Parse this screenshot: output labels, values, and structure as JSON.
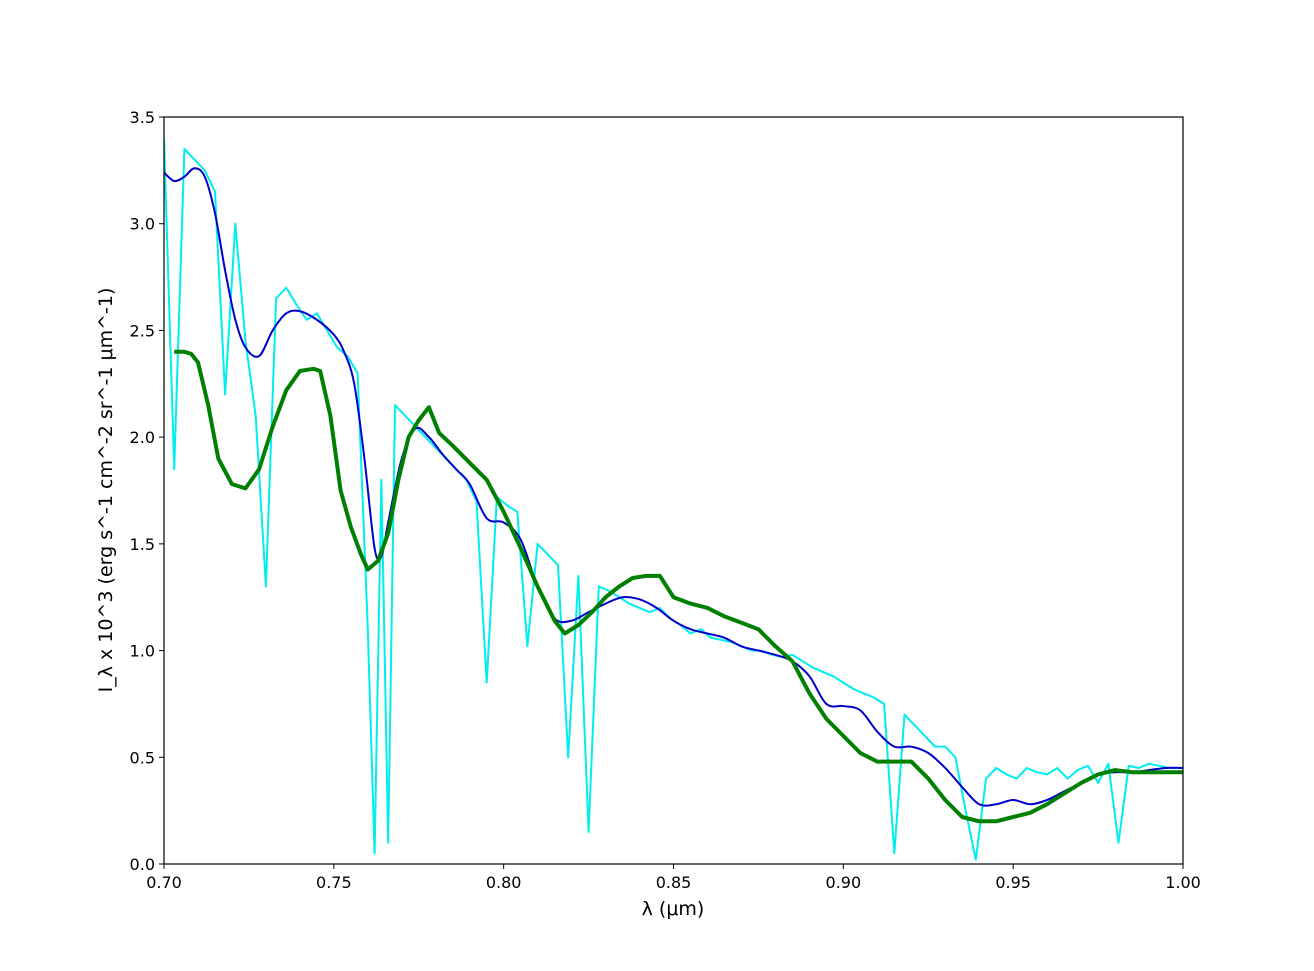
{
  "chart_data": {
    "type": "line",
    "title": "",
    "xlabel": "λ (μm)",
    "ylabel": "I_λ x 10^3 (erg s^-1 cm^-2 sr^-1 μm^-1)",
    "xlim": [
      0.7,
      1.0
    ],
    "ylim": [
      0.0,
      3.5
    ],
    "grid": false,
    "legend": "none",
    "x_ticks": [
      "0.70",
      "0.75",
      "0.80",
      "0.85",
      "0.90",
      "0.95",
      "1.00"
    ],
    "y_ticks": [
      "0.0",
      "0.5",
      "1.0",
      "1.5",
      "2.0",
      "2.5",
      "3.0",
      "3.5"
    ],
    "series": [
      {
        "color": "#00eeee",
        "style": "noisy",
        "x": [
          0.7,
          0.703,
          0.706,
          0.709,
          0.712,
          0.715,
          0.718,
          0.721,
          0.724,
          0.727,
          0.73,
          0.733,
          0.736,
          0.739,
          0.742,
          0.745,
          0.748,
          0.751,
          0.754,
          0.757,
          0.76,
          0.762,
          0.764,
          0.766,
          0.768,
          0.771,
          0.774,
          0.777,
          0.78,
          0.783,
          0.786,
          0.789,
          0.792,
          0.795,
          0.798,
          0.801,
          0.804,
          0.807,
          0.81,
          0.813,
          0.816,
          0.819,
          0.822,
          0.825,
          0.828,
          0.831,
          0.834,
          0.837,
          0.84,
          0.843,
          0.846,
          0.849,
          0.852,
          0.855,
          0.858,
          0.861,
          0.864,
          0.867,
          0.87,
          0.873,
          0.876,
          0.879,
          0.882,
          0.885,
          0.888,
          0.891,
          0.894,
          0.897,
          0.9,
          0.903,
          0.906,
          0.909,
          0.912,
          0.915,
          0.918,
          0.921,
          0.924,
          0.927,
          0.93,
          0.933,
          0.936,
          0.939,
          0.942,
          0.945,
          0.948,
          0.951,
          0.954,
          0.957,
          0.96,
          0.963,
          0.966,
          0.969,
          0.972,
          0.975,
          0.978,
          0.981,
          0.984,
          0.987,
          0.99,
          0.993,
          0.996,
          1.0
        ],
        "y": [
          3.4,
          1.85,
          3.35,
          3.3,
          3.25,
          3.15,
          2.2,
          3.0,
          2.45,
          2.1,
          1.3,
          2.65,
          2.7,
          2.62,
          2.55,
          2.58,
          2.5,
          2.42,
          2.38,
          2.3,
          1.1,
          0.05,
          1.8,
          0.1,
          2.15,
          2.1,
          2.05,
          2.0,
          1.95,
          1.9,
          1.85,
          1.8,
          1.7,
          0.85,
          1.72,
          1.68,
          1.65,
          1.02,
          1.5,
          1.45,
          1.4,
          0.5,
          1.35,
          0.15,
          1.3,
          1.28,
          1.25,
          1.22,
          1.2,
          1.18,
          1.2,
          1.15,
          1.12,
          1.08,
          1.1,
          1.06,
          1.05,
          1.04,
          1.02,
          1.0,
          1.0,
          0.98,
          0.97,
          0.98,
          0.95,
          0.92,
          0.9,
          0.88,
          0.85,
          0.82,
          0.8,
          0.78,
          0.75,
          0.05,
          0.7,
          0.65,
          0.6,
          0.55,
          0.55,
          0.5,
          0.25,
          0.02,
          0.4,
          0.45,
          0.42,
          0.4,
          0.45,
          0.43,
          0.42,
          0.45,
          0.4,
          0.44,
          0.46,
          0.38,
          0.47,
          0.1,
          0.46,
          0.45,
          0.47,
          0.46,
          0.45,
          0.45
        ]
      },
      {
        "color": "#0000cc",
        "style": "smooth",
        "x": [
          0.7,
          0.703,
          0.706,
          0.709,
          0.712,
          0.715,
          0.718,
          0.721,
          0.724,
          0.728,
          0.732,
          0.736,
          0.74,
          0.745,
          0.75,
          0.753,
          0.756,
          0.759,
          0.762,
          0.764,
          0.766,
          0.77,
          0.774,
          0.778,
          0.782,
          0.786,
          0.79,
          0.795,
          0.8,
          0.805,
          0.81,
          0.815,
          0.82,
          0.825,
          0.83,
          0.835,
          0.84,
          0.845,
          0.85,
          0.855,
          0.86,
          0.865,
          0.87,
          0.875,
          0.88,
          0.885,
          0.89,
          0.895,
          0.9,
          0.905,
          0.91,
          0.915,
          0.92,
          0.925,
          0.93,
          0.935,
          0.94,
          0.945,
          0.95,
          0.955,
          0.96,
          0.965,
          0.97,
          0.975,
          0.98,
          0.985,
          0.99,
          0.995,
          1.0
        ],
        "y": [
          3.24,
          3.2,
          3.22,
          3.26,
          3.22,
          3.05,
          2.78,
          2.55,
          2.42,
          2.38,
          2.5,
          2.58,
          2.59,
          2.55,
          2.48,
          2.4,
          2.25,
          1.9,
          1.48,
          1.44,
          1.6,
          1.9,
          2.04,
          2.0,
          1.92,
          1.85,
          1.78,
          1.62,
          1.6,
          1.52,
          1.3,
          1.15,
          1.14,
          1.18,
          1.22,
          1.25,
          1.24,
          1.2,
          1.14,
          1.1,
          1.08,
          1.06,
          1.02,
          1.0,
          0.98,
          0.95,
          0.88,
          0.75,
          0.74,
          0.72,
          0.62,
          0.55,
          0.55,
          0.52,
          0.45,
          0.36,
          0.28,
          0.28,
          0.3,
          0.28,
          0.3,
          0.34,
          0.38,
          0.42,
          0.43,
          0.43,
          0.44,
          0.45,
          0.45
        ]
      },
      {
        "color": "#008000",
        "style": "jagged",
        "x": [
          0.703,
          0.706,
          0.708,
          0.71,
          0.713,
          0.716,
          0.72,
          0.724,
          0.728,
          0.732,
          0.736,
          0.74,
          0.744,
          0.746,
          0.749,
          0.752,
          0.755,
          0.758,
          0.76,
          0.763,
          0.766,
          0.769,
          0.772,
          0.775,
          0.778,
          0.781,
          0.785,
          0.79,
          0.795,
          0.8,
          0.805,
          0.81,
          0.815,
          0.818,
          0.822,
          0.826,
          0.83,
          0.834,
          0.838,
          0.842,
          0.846,
          0.85,
          0.855,
          0.86,
          0.865,
          0.87,
          0.875,
          0.88,
          0.885,
          0.89,
          0.895,
          0.9,
          0.905,
          0.91,
          0.915,
          0.92,
          0.925,
          0.93,
          0.935,
          0.94,
          0.945,
          0.95,
          0.955,
          0.96,
          0.965,
          0.97,
          0.975,
          0.98,
          0.985,
          0.99,
          0.995,
          1.0
        ],
        "y": [
          2.4,
          2.4,
          2.39,
          2.35,
          2.15,
          1.9,
          1.78,
          1.76,
          1.85,
          2.05,
          2.22,
          2.31,
          2.32,
          2.31,
          2.1,
          1.75,
          1.58,
          1.45,
          1.38,
          1.42,
          1.55,
          1.8,
          2.0,
          2.08,
          2.14,
          2.02,
          1.96,
          1.88,
          1.8,
          1.65,
          1.48,
          1.3,
          1.14,
          1.08,
          1.12,
          1.18,
          1.25,
          1.3,
          1.34,
          1.35,
          1.35,
          1.25,
          1.22,
          1.2,
          1.16,
          1.13,
          1.1,
          1.02,
          0.95,
          0.8,
          0.68,
          0.6,
          0.52,
          0.48,
          0.48,
          0.48,
          0.4,
          0.3,
          0.22,
          0.2,
          0.2,
          0.22,
          0.24,
          0.28,
          0.33,
          0.38,
          0.42,
          0.44,
          0.43,
          0.43,
          0.43,
          0.43
        ]
      }
    ]
  }
}
